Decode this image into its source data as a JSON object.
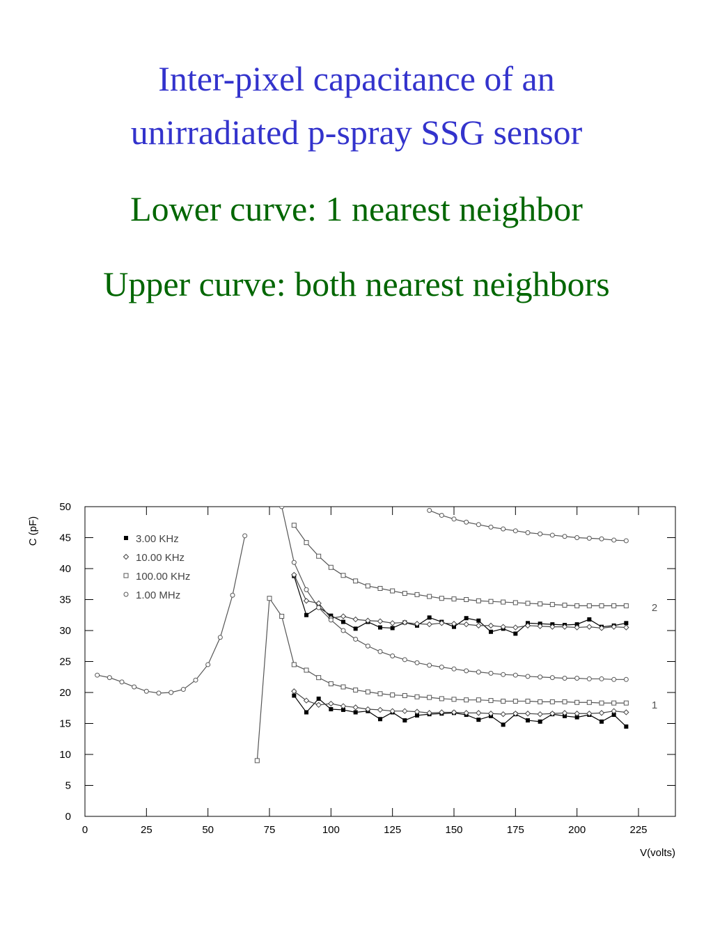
{
  "slide": {
    "title_lines": [
      "Inter-pixel capacitance of an",
      "unirradiated  p-spray SSG sensor"
    ],
    "title_color": "#3333cc",
    "subtitle_lines": [
      "Lower curve: 1 nearest neighbor",
      "Upper curve: both nearest neighbors"
    ],
    "subtitle_color": "#006600"
  },
  "chart_data": {
    "type": "line",
    "ylabel": "C (pF)",
    "xlabel": "V(volts)",
    "xlim": [
      0,
      240
    ],
    "xticks": [
      0,
      25,
      50,
      75,
      100,
      125,
      150,
      175,
      200,
      225
    ],
    "ylim": [
      0,
      50
    ],
    "yticks": [
      0,
      5,
      10,
      15,
      20,
      25,
      30,
      35,
      40,
      45,
      50
    ],
    "legend": "upper left",
    "curve_labels": [
      "2",
      "1"
    ],
    "x": [
      5,
      10,
      15,
      20,
      25,
      30,
      35,
      40,
      45,
      50,
      55,
      60,
      65,
      70,
      75,
      80,
      85,
      90,
      95,
      100,
      105,
      110,
      115,
      120,
      125,
      130,
      135,
      140,
      145,
      150,
      155,
      160,
      165,
      170,
      175,
      180,
      185,
      190,
      195,
      200,
      205,
      210,
      215,
      220
    ],
    "series": [
      {
        "name": "3.00 KHz",
        "marker": "filled-square",
        "color": "#000000",
        "curves": [
          [
            null,
            null,
            null,
            null,
            null,
            null,
            null,
            null,
            null,
            null,
            null,
            null,
            null,
            null,
            null,
            null,
            38.8,
            32.5,
            33.8,
            32.4,
            31.4,
            30.3,
            31.4,
            30.5,
            30.4,
            31.3,
            30.8,
            32.1,
            31.4,
            30.6,
            32,
            31.6,
            29.8,
            30.3,
            29.5,
            31.2,
            31.1,
            31,
            30.9,
            31,
            31.8,
            30.6,
            30.8,
            31.2
          ],
          [
            null,
            null,
            null,
            null,
            null,
            null,
            null,
            null,
            null,
            null,
            null,
            null,
            null,
            null,
            null,
            null,
            19.5,
            16.8,
            19,
            17.3,
            17.2,
            16.8,
            17,
            15.7,
            16.8,
            15.5,
            16.3,
            16.5,
            16.6,
            16.7,
            16.4,
            15.6,
            16.2,
            14.8,
            16.5,
            15.5,
            15.3,
            16.5,
            16.2,
            16,
            16.4,
            15.3,
            16.4,
            14.5
          ]
        ]
      },
      {
        "name": "10.00 KHz",
        "marker": "cross",
        "color": "#444444",
        "curves": [
          [
            null,
            null,
            null,
            null,
            null,
            null,
            null,
            null,
            null,
            null,
            null,
            null,
            null,
            null,
            null,
            null,
            39,
            34.8,
            34.4,
            32,
            32.3,
            31.8,
            31.6,
            31.5,
            31.2,
            31.3,
            31.1,
            31,
            31.2,
            31.1,
            31,
            30.8,
            30.8,
            30.6,
            30.5,
            30.8,
            30.7,
            30.6,
            30.6,
            30.5,
            30.6,
            30.4,
            30.6,
            30.5
          ],
          [
            null,
            null,
            null,
            null,
            null,
            null,
            null,
            null,
            null,
            null,
            null,
            null,
            null,
            null,
            null,
            null,
            20.2,
            18.7,
            18,
            18.2,
            17.8,
            17.6,
            17.3,
            17.2,
            17,
            17,
            16.9,
            16.7,
            16.8,
            16.8,
            16.7,
            16.7,
            16.6,
            16.5,
            16.6,
            16.6,
            16.5,
            16.6,
            16.7,
            16.6,
            16.6,
            16.7,
            17,
            16.8
          ]
        ]
      },
      {
        "name": "100.00 KHz",
        "marker": "open-square",
        "color": "#555555",
        "curves": [
          [
            null,
            null,
            null,
            null,
            null,
            null,
            null,
            null,
            null,
            null,
            null,
            null,
            null,
            null,
            null,
            null,
            47,
            44.2,
            42,
            40.2,
            38.9,
            38,
            37.2,
            36.8,
            36.4,
            36,
            35.8,
            35.5,
            35.2,
            35.1,
            35,
            34.8,
            34.7,
            34.6,
            34.5,
            34.4,
            34.3,
            34.2,
            34.1,
            34,
            34,
            34,
            34,
            34
          ],
          [
            null,
            null,
            null,
            null,
            null,
            null,
            null,
            null,
            null,
            null,
            null,
            null,
            null,
            9,
            35.2,
            32.3,
            24.5,
            23.6,
            22.4,
            21.4,
            20.9,
            20.4,
            20.1,
            19.8,
            19.6,
            19.5,
            19.3,
            19.2,
            19,
            18.9,
            18.8,
            18.8,
            18.7,
            18.6,
            18.6,
            18.6,
            18.5,
            18.5,
            18.5,
            18.4,
            18.4,
            18.3,
            18.3,
            18.3
          ]
        ]
      },
      {
        "name": "1.00 MHz",
        "marker": "open-circle",
        "color": "#555555",
        "curves": [
          [
            null,
            null,
            null,
            null,
            null,
            null,
            null,
            null,
            null,
            null,
            null,
            null,
            null,
            null,
            null,
            null,
            null,
            null,
            null,
            null,
            null,
            null,
            null,
            null,
            null,
            null,
            null,
            49.4,
            48.6,
            48,
            47.5,
            47.1,
            46.7,
            46.4,
            46.1,
            45.8,
            45.6,
            45.4,
            45.2,
            45,
            44.9,
            44.8,
            44.6,
            44.5
          ],
          [
            22.8,
            22.4,
            21.7,
            20.9,
            20.2,
            19.9,
            20,
            20.5,
            22,
            24.5,
            28.9,
            35.7,
            45.3,
            null,
            null,
            50,
            41,
            36.6,
            33.7,
            31.7,
            30,
            28.6,
            27.5,
            26.6,
            25.9,
            25.3,
            24.8,
            24.4,
            24.1,
            23.8,
            23.5,
            23.3,
            23.1,
            22.9,
            22.8,
            22.6,
            22.5,
            22.4,
            22.3,
            22.3,
            22.2,
            22.2,
            22.1,
            22.1
          ]
        ]
      }
    ]
  }
}
